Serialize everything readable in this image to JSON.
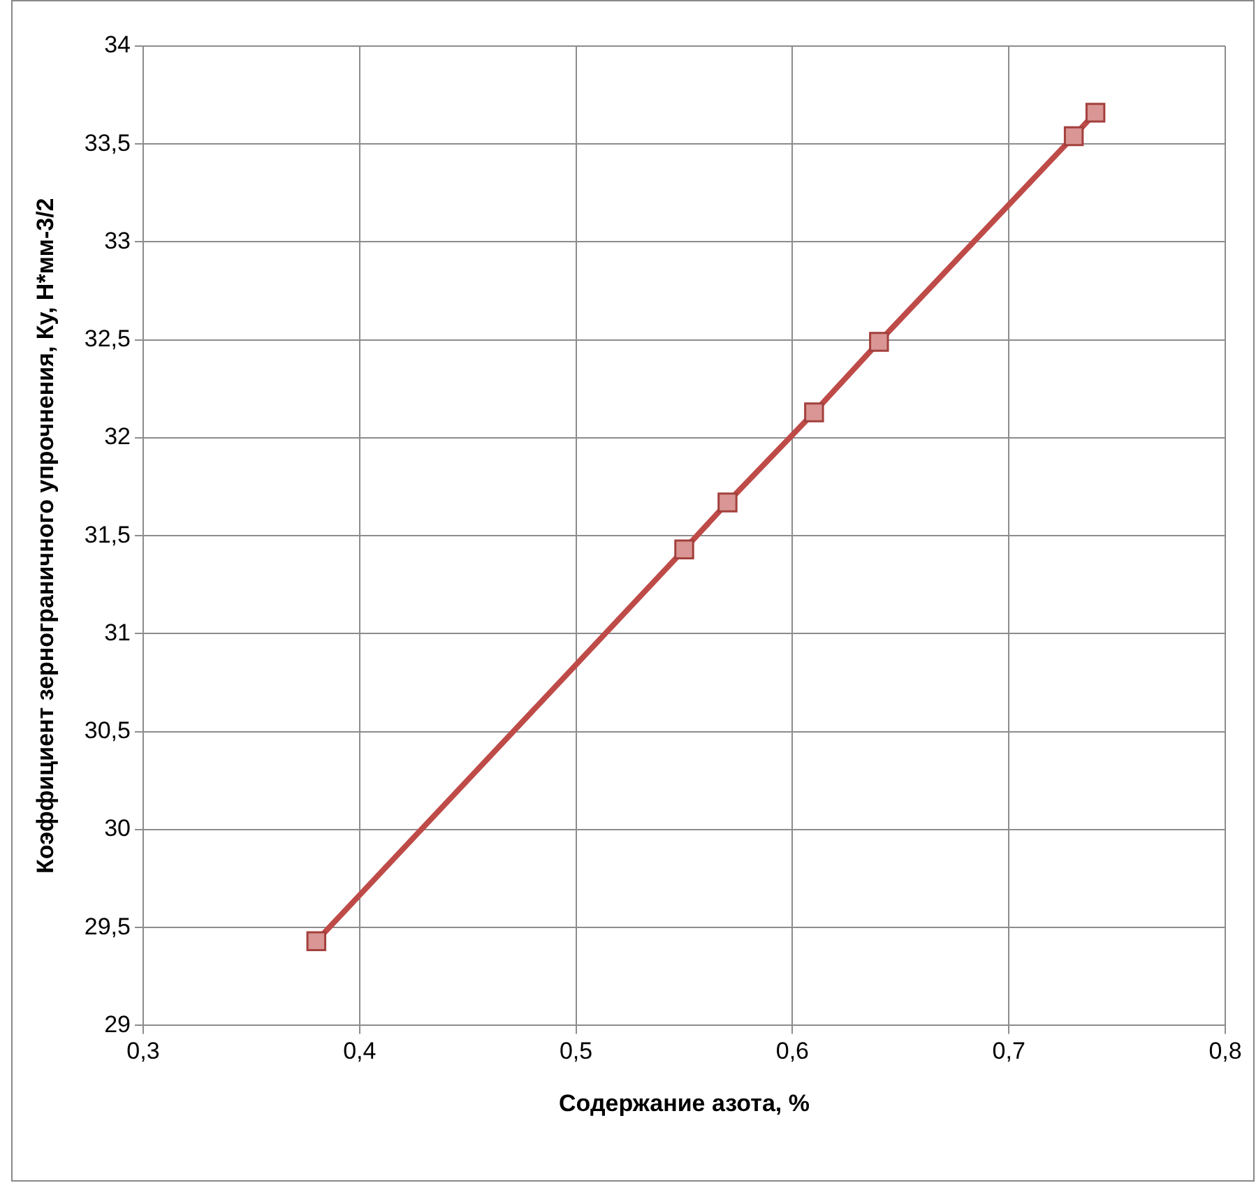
{
  "chart_data": {
    "type": "line",
    "xlabel": "Содержание азота, %",
    "ylabel": "Коэффициент зернограничного упрочнения, Ку, Н*мм-3/2",
    "x": [
      0.38,
      0.55,
      0.57,
      0.61,
      0.64,
      0.73,
      0.74
    ],
    "series": [
      {
        "color": "#be4b48",
        "values": [
          29.43,
          31.43,
          31.67,
          32.13,
          32.49,
          33.54,
          33.66
        ]
      }
    ],
    "xlim": [
      0.3,
      0.8
    ],
    "xticks": [
      {
        "value": 0.3,
        "label": "0,3"
      },
      {
        "value": 0.4,
        "label": "0,4"
      },
      {
        "value": 0.5,
        "label": "0,5"
      },
      {
        "value": 0.6,
        "label": "0,6"
      },
      {
        "value": 0.7,
        "label": "0,7"
      },
      {
        "value": 0.8,
        "label": "0,8"
      }
    ],
    "ylim": [
      29,
      34
    ],
    "yticks": [
      29,
      {
        "value": 29.5,
        "label": "29,5"
      },
      30,
      {
        "value": 30.5,
        "label": "30,5"
      },
      31,
      {
        "value": 31.5,
        "label": "31,5"
      },
      32,
      {
        "value": 32.5,
        "label": "32,5"
      },
      33,
      {
        "value": 33.5,
        "label": "33,5"
      },
      34
    ],
    "grid": true,
    "marker": "square",
    "line_style": "solid"
  }
}
